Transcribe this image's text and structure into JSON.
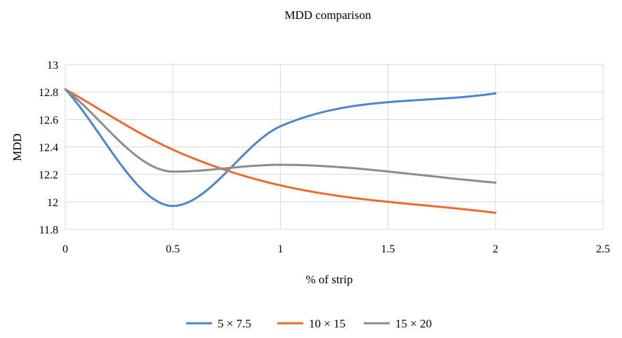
{
  "chart_data": {
    "type": "line",
    "title": "MDD comparison",
    "xlabel": "% of strip",
    "ylabel": "MDD",
    "xlim": [
      0,
      2.5
    ],
    "ylim": [
      11.8,
      13
    ],
    "x_ticks": [
      "0",
      "0.5",
      "1",
      "1.5",
      "2",
      "2.5"
    ],
    "y_ticks": [
      "11.8",
      "12",
      "12.2",
      "12.4",
      "12.6",
      "12.8",
      "13"
    ],
    "x_tick_values": [
      0,
      0.5,
      1,
      1.5,
      2,
      2.5
    ],
    "y_tick_values": [
      11.8,
      12,
      12.2,
      12.4,
      12.6,
      12.8,
      13
    ],
    "grid": true,
    "smooth": true,
    "legend_position": "bottom",
    "x": [
      0,
      0.5,
      1,
      2
    ],
    "series": [
      {
        "name": "5 × 7.5",
        "color": "#4a86d0",
        "values": [
          12.82,
          11.97,
          12.55,
          12.79
        ]
      },
      {
        "name": "10 × 15",
        "color": "#ee6a2e",
        "values": [
          12.82,
          12.38,
          12.12,
          11.92
        ]
      },
      {
        "name": "15 × 20",
        "color": "#8c8c8c",
        "values": [
          12.82,
          12.22,
          12.27,
          12.14
        ]
      }
    ]
  }
}
